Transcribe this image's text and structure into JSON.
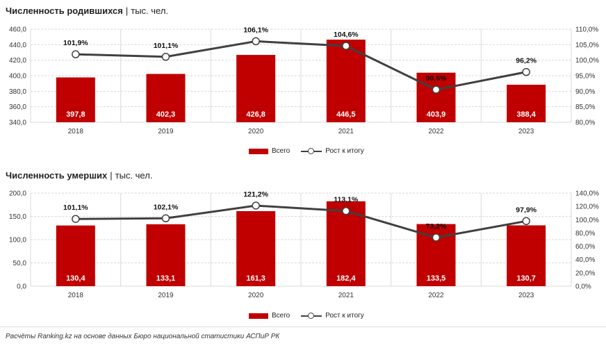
{
  "charts": {
    "births": {
      "title": "Численность родившихся",
      "separator": "|",
      "unit": "тыс. чел.",
      "legend": {
        "bars": "Всего",
        "line": "Рост к итогу"
      }
    },
    "deaths": {
      "title": "Численность умерших",
      "separator": "|",
      "unit": "тыс. чел.",
      "legend": {
        "bars": "Всего",
        "line": "Рост к итогу"
      }
    }
  },
  "footer": {
    "source": "Расчёты Ranking.kz на основе данных Бюро национальной статистики АСПиР РК"
  },
  "colors": {
    "bar": "#c00000",
    "line": "#404040",
    "grid": "#d9d9d9"
  },
  "chart_data": [
    {
      "type": "bar",
      "title": "Численность родившихся",
      "unit": "тыс. чел.",
      "categories": [
        "2018",
        "2019",
        "2020",
        "2021",
        "2022",
        "2023"
      ],
      "series": [
        {
          "name": "Всего",
          "type": "bar",
          "axis": "left",
          "values": [
            397.8,
            402.3,
            426.8,
            446.5,
            403.9,
            388.4
          ],
          "labels": [
            "397,8",
            "402,3",
            "426,8",
            "446,5",
            "403,9",
            "388,4"
          ]
        },
        {
          "name": "Рост к итогу",
          "type": "line",
          "axis": "right",
          "values": [
            101.9,
            101.1,
            106.1,
            104.6,
            90.5,
            96.2
          ],
          "labels": [
            "101,9%",
            "101,1%",
            "106,1%",
            "104,6%",
            "90,5%",
            "96,2%"
          ]
        }
      ],
      "ylim": [
        340,
        460
      ],
      "yticks": [
        "340,0",
        "360,0",
        "380,0",
        "400,0",
        "420,0",
        "440,0",
        "460,0"
      ],
      "y2lim": [
        80,
        110
      ],
      "y2ticks": [
        "80,0%",
        "85,0%",
        "90,0%",
        "95,0%",
        "100,0%",
        "105,0%",
        "110,0%"
      ],
      "grid": true,
      "legend_position": "bottom"
    },
    {
      "type": "bar",
      "title": "Численность умерших",
      "unit": "тыс. чел.",
      "categories": [
        "2018",
        "2019",
        "2020",
        "2021",
        "2022",
        "2023"
      ],
      "series": [
        {
          "name": "Всего",
          "type": "bar",
          "axis": "left",
          "values": [
            130.4,
            133.1,
            161.3,
            182.4,
            133.5,
            130.7
          ],
          "labels": [
            "130,4",
            "133,1",
            "161,3",
            "182,4",
            "133,5",
            "130,7"
          ]
        },
        {
          "name": "Рост к итогу",
          "type": "line",
          "axis": "right",
          "values": [
            101.1,
            102.1,
            121.2,
            113.1,
            73.2,
            97.9
          ],
          "labels": [
            "101,1%",
            "102,1%",
            "121,2%",
            "113,1%",
            "73,2%",
            "97,9%"
          ]
        }
      ],
      "ylim": [
        0,
        200
      ],
      "yticks": [
        "0,0",
        "50,0",
        "100,0",
        "150,0",
        "200,0"
      ],
      "y2lim": [
        0,
        140
      ],
      "y2ticks": [
        "0,0%",
        "20,0%",
        "40,0%",
        "60,0%",
        "80,0%",
        "100,0%",
        "120,0%",
        "140,0%"
      ],
      "grid": true,
      "legend_position": "bottom"
    }
  ]
}
